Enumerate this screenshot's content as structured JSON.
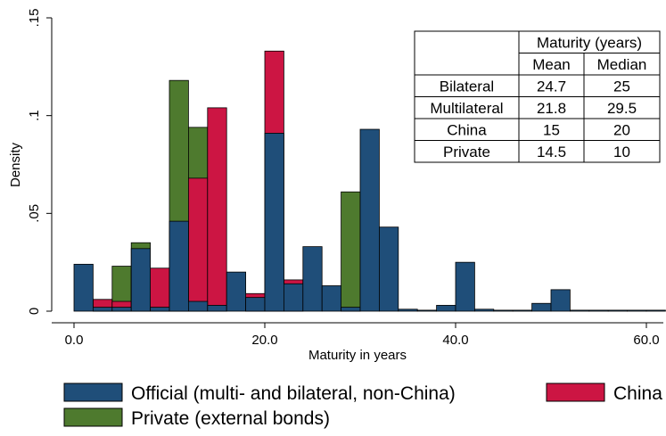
{
  "chart_data": {
    "type": "bar",
    "xlabel": "Maturity in years",
    "ylabel": "Density",
    "xlim": [
      -2,
      62
    ],
    "ylim": [
      0,
      0.15
    ],
    "x_ticks": [
      0,
      20,
      40,
      60
    ],
    "x_tick_labels": [
      "0.0",
      "20.0",
      "40.0",
      "60.0"
    ],
    "y_ticks": [
      0,
      0.05,
      0.1,
      0.15
    ],
    "y_tick_labels": [
      "0",
      ".05",
      ".1",
      ".15"
    ],
    "bin_width": 2,
    "grid": false,
    "legend_position": "bottom",
    "series": [
      {
        "name": "Private (external bonds)",
        "color": "#4e7a2e",
        "bins": [
          {
            "start": 2,
            "value": 0.006
          },
          {
            "start": 4,
            "value": 0.023
          },
          {
            "start": 6,
            "value": 0.035
          },
          {
            "start": 8,
            "value": 0.016
          },
          {
            "start": 10,
            "value": 0.118
          },
          {
            "start": 12,
            "value": 0.094
          },
          {
            "start": 28,
            "value": 0.061
          }
        ]
      },
      {
        "name": "China",
        "color": "#cc1543",
        "bins": [
          {
            "start": 2,
            "value": 0.006
          },
          {
            "start": 4,
            "value": 0.005
          },
          {
            "start": 6,
            "value": 0.021
          },
          {
            "start": 8,
            "value": 0.022
          },
          {
            "start": 10,
            "value": 0.041
          },
          {
            "start": 12,
            "value": 0.068
          },
          {
            "start": 14,
            "value": 0.104
          },
          {
            "start": 18,
            "value": 0.009
          },
          {
            "start": 20,
            "value": 0.133
          },
          {
            "start": 22,
            "value": 0.016
          }
        ]
      },
      {
        "name": "Official (multi- and bilateral, non-China)",
        "color": "#1f4e79",
        "bins": [
          {
            "start": 0,
            "value": 0.024
          },
          {
            "start": 2,
            "value": 0.002
          },
          {
            "start": 4,
            "value": 0.002
          },
          {
            "start": 6,
            "value": 0.032
          },
          {
            "start": 8,
            "value": 0.002
          },
          {
            "start": 10,
            "value": 0.046
          },
          {
            "start": 12,
            "value": 0.005
          },
          {
            "start": 14,
            "value": 0.003
          },
          {
            "start": 16,
            "value": 0.02
          },
          {
            "start": 18,
            "value": 0.007
          },
          {
            "start": 20,
            "value": 0.091
          },
          {
            "start": 22,
            "value": 0.014
          },
          {
            "start": 24,
            "value": 0.033
          },
          {
            "start": 26,
            "value": 0.013
          },
          {
            "start": 28,
            "value": 0.002
          },
          {
            "start": 30,
            "value": 0.093
          },
          {
            "start": 32,
            "value": 0.043
          },
          {
            "start": 34,
            "value": 0.001
          },
          {
            "start": 36,
            "value": 0.0005
          },
          {
            "start": 38,
            "value": 0.003
          },
          {
            "start": 40,
            "value": 0.025
          },
          {
            "start": 42,
            "value": 0.001
          },
          {
            "start": 44,
            "value": 0.0005
          },
          {
            "start": 46,
            "value": 0.0005
          },
          {
            "start": 48,
            "value": 0.004
          },
          {
            "start": 50,
            "value": 0.011
          },
          {
            "start": 52,
            "value": 0.0005
          },
          {
            "start": 54,
            "value": 0.0005
          },
          {
            "start": 56,
            "value": 0.0005
          },
          {
            "start": 58,
            "value": 0.0005
          },
          {
            "start": 60,
            "value": 0.0005
          }
        ]
      }
    ],
    "legend": [
      {
        "label": "Official (multi- and bilateral, non-China)",
        "color": "#1f4e79"
      },
      {
        "label": "China",
        "color": "#cc1543"
      },
      {
        "label": "Private (external bonds)",
        "color": "#4e7a2e"
      }
    ],
    "inset_table": {
      "header": "Maturity (years)",
      "columns": [
        "Mean",
        "Median"
      ],
      "rows": [
        {
          "label": "Bilateral",
          "mean": "24.7",
          "median": "25"
        },
        {
          "label": "Multilateral",
          "mean": "21.8",
          "median": "29.5"
        },
        {
          "label": "China",
          "mean": "15",
          "median": "20"
        },
        {
          "label": "Private",
          "mean": "14.5",
          "median": "10"
        }
      ]
    }
  }
}
